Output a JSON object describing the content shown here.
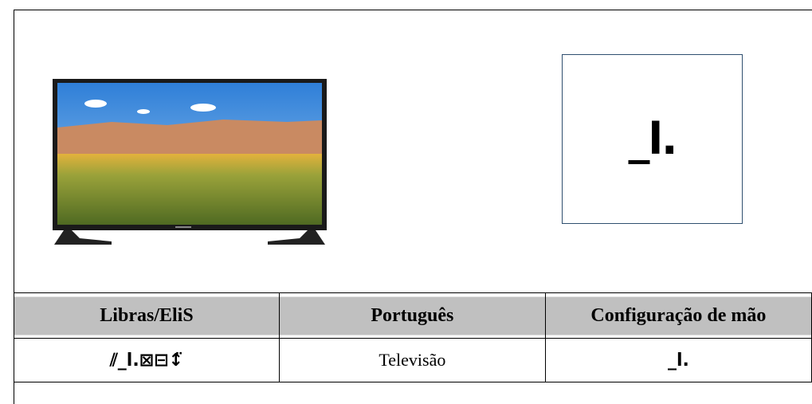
{
  "figure": {
    "handshape": "_l."
  },
  "table": {
    "header": [
      "Libras/EliS",
      "Português",
      "Configuração de mão"
    ],
    "rows": [
      [
        "⫽_l.⊠⊟↕̈",
        "Televisão",
        "_l."
      ]
    ]
  }
}
